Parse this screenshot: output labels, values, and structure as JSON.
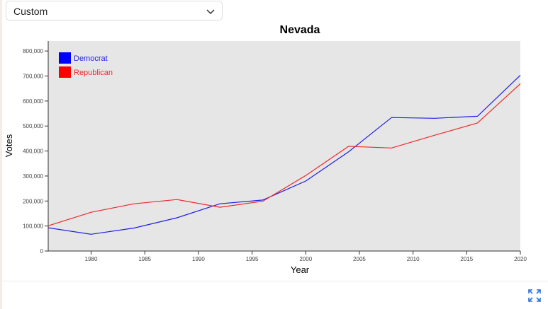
{
  "dropdown": {
    "selected": "Custom"
  },
  "colors": {
    "democrat": "#1f1fe6",
    "republican": "#ee2a2a",
    "plot_bg": "#e6e6e6"
  },
  "icons": {
    "dropdown": "chevron-down-icon",
    "fullscreen": "expand-icon"
  },
  "chart_data": {
    "type": "line",
    "title": "Nevada",
    "xlabel": "Year",
    "ylabel": "Votes",
    "xlim": [
      1976,
      2020
    ],
    "ylim": [
      0,
      840000
    ],
    "xticks": [
      1980,
      1985,
      1990,
      1995,
      2000,
      2005,
      2010,
      2015,
      2020
    ],
    "xtick_labels": [
      "1980",
      "1985",
      "1990",
      "1995",
      "2000",
      "2005",
      "2010",
      "2015",
      "2020"
    ],
    "yticks": [
      0,
      100000,
      200000,
      300000,
      400000,
      500000,
      600000,
      700000,
      800000
    ],
    "ytick_labels": [
      "0",
      "100,000",
      "200,000",
      "300,000",
      "400,000",
      "500,000",
      "600,000",
      "700,000",
      "800,000"
    ],
    "legend_position": "top-left",
    "grid": false,
    "x": [
      1976,
      1980,
      1984,
      1988,
      1992,
      1996,
      2000,
      2004,
      2008,
      2012,
      2016,
      2020
    ],
    "series": [
      {
        "name": "Democrat",
        "color": "#1f1fe6",
        "values": [
          93000,
          67000,
          92000,
          133000,
          189000,
          204000,
          280000,
          397000,
          534000,
          531000,
          539000,
          703000
        ]
      },
      {
        "name": "Republican",
        "color": "#ee2a2a",
        "values": [
          101000,
          155000,
          189000,
          206000,
          175000,
          199000,
          302000,
          419000,
          412000,
          463000,
          512000,
          669000
        ]
      }
    ]
  }
}
